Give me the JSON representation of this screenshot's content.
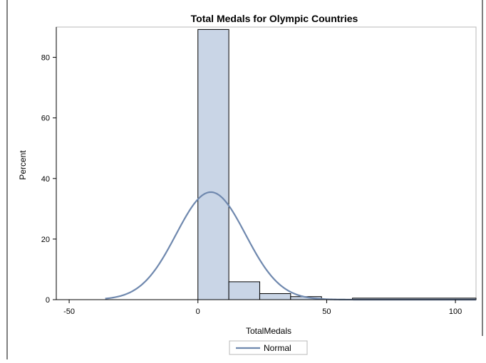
{
  "chart_data": {
    "type": "histogram",
    "title": "Total Medals for Olympic Countries",
    "xlabel": "TotalMedals",
    "ylabel": "Percent",
    "xlim": [
      -55,
      108
    ],
    "ylim": [
      0,
      90
    ],
    "x_ticks": [
      -50,
      0,
      50,
      100
    ],
    "y_ticks": [
      0,
      20,
      40,
      60,
      80
    ],
    "grid": false,
    "legend_position": "bottom-center",
    "bins": [
      {
        "start": 0,
        "end": 12,
        "percent": 89.2
      },
      {
        "start": 12,
        "end": 24,
        "percent": 5.9
      },
      {
        "start": 24,
        "end": 36,
        "percent": 2.0
      },
      {
        "start": 36,
        "end": 48,
        "percent": 1.0
      },
      {
        "start": 48,
        "end": 60,
        "percent": 0
      },
      {
        "start": 60,
        "end": 108,
        "percent": 0.5
      }
    ],
    "series": [
      {
        "name": "Normal",
        "type": "line",
        "mean": 5,
        "std_dev": 13.5,
        "peak_percent": 35.5,
        "x_range": [
          -36,
          108
        ]
      }
    ],
    "colors": {
      "bar_fill": "#c9d5e6",
      "bar_edge": "#000000",
      "curve": "#6f88ae",
      "axis": "#000000",
      "frame": "#b8b8b8"
    }
  }
}
